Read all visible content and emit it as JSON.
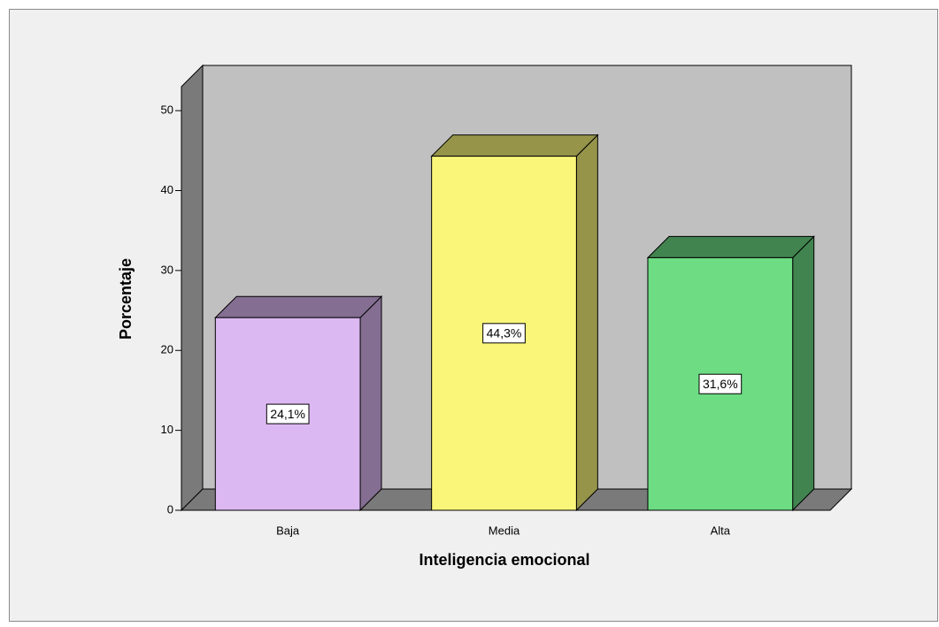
{
  "chart_data": {
    "type": "bar3d",
    "categories": [
      "Baja",
      "Media",
      "Alta"
    ],
    "values": [
      24.1,
      44.3,
      31.6
    ],
    "value_labels": [
      "24,1%",
      "44,3%",
      "31,6%"
    ],
    "colors": [
      "#dcb8f2",
      "#faf67a",
      "#6ddc83"
    ],
    "x_label": "Inteligencia emocional",
    "y_label": "Porcentaje",
    "ylim": [
      0,
      53
    ],
    "yticks": [
      0,
      10,
      20,
      30,
      40,
      50
    ]
  }
}
